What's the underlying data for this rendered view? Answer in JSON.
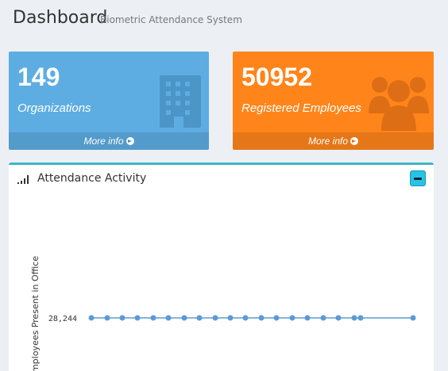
{
  "header": {
    "title": "Dashboard",
    "subtitle": "Biometric Attendance System"
  },
  "stats": [
    {
      "value": "149",
      "label": "Organizations",
      "more": "More info",
      "icon": "building-icon",
      "color": "#5dade2"
    },
    {
      "value": "50952",
      "label": "Registered Employees",
      "more": "More info",
      "icon": "users-icon",
      "color": "#ff851b"
    }
  ],
  "panel": {
    "title": "Attendance Activity",
    "accent": "#3cb5c9"
  },
  "chart_data": {
    "type": "line",
    "ylabel": "Employees Present in Office",
    "ytick_label": "28,244",
    "series": [
      {
        "values": [
          28244,
          28244,
          28244,
          28244,
          28244,
          28244,
          28244,
          28244,
          28244,
          28244,
          28244,
          28244,
          28244,
          28244,
          28244,
          28244,
          28244,
          28244,
          28244,
          28244
        ]
      }
    ],
    "color": "#5b9bd5"
  }
}
